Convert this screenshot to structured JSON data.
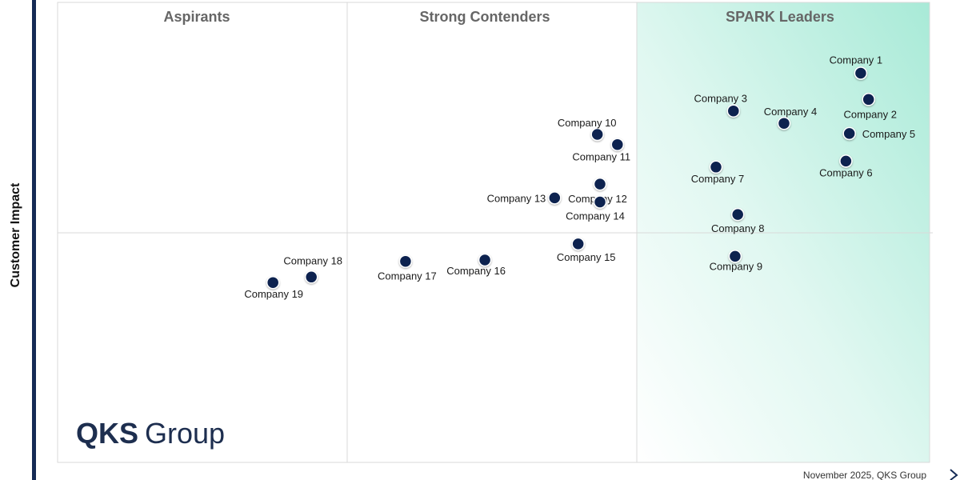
{
  "chart_data": {
    "type": "scatter",
    "ylabel": "Customer Impact",
    "xlabel": "",
    "quadrants": [
      "Aspirants",
      "Strong Contenders",
      "SPARK Leaders"
    ],
    "highlight_color": "#a8ead7",
    "point_color": "#0b2350",
    "points": [
      {
        "name": "Company 1",
        "x": 9.21,
        "y": 8.46
      },
      {
        "name": "Company 2",
        "x": 9.3,
        "y": 7.89
      },
      {
        "name": "Company 3",
        "x": 7.75,
        "y": 7.64
      },
      {
        "name": "Company 4",
        "x": 8.33,
        "y": 7.37
      },
      {
        "name": "Company 5",
        "x": 9.08,
        "y": 7.15
      },
      {
        "name": "Company 6",
        "x": 9.04,
        "y": 6.55
      },
      {
        "name": "Company 7",
        "x": 7.55,
        "y": 6.42
      },
      {
        "name": "Company 8",
        "x": 7.8,
        "y": 5.39
      },
      {
        "name": "Company 9",
        "x": 7.77,
        "y": 4.48
      },
      {
        "name": "Company 10",
        "x": 6.19,
        "y": 7.13
      },
      {
        "name": "Company 11",
        "x": 6.42,
        "y": 6.91
      },
      {
        "name": "Company 12",
        "x": 6.22,
        "y": 6.05
      },
      {
        "name": "Company 13",
        "x": 5.7,
        "y": 5.75
      },
      {
        "name": "Company 14",
        "x": 6.22,
        "y": 5.66
      },
      {
        "name": "Company 15",
        "x": 5.97,
        "y": 4.75
      },
      {
        "name": "Company 16",
        "x": 4.9,
        "y": 4.4
      },
      {
        "name": "Company 17",
        "x": 3.99,
        "y": 4.37
      },
      {
        "name": "Company 18",
        "x": 2.91,
        "y": 4.03
      },
      {
        "name": "Company 19",
        "x": 2.47,
        "y": 3.91
      }
    ]
  },
  "logo": {
    "bold": "QKS",
    "light": "Group"
  },
  "footer": "November 2025, QKS Group"
}
